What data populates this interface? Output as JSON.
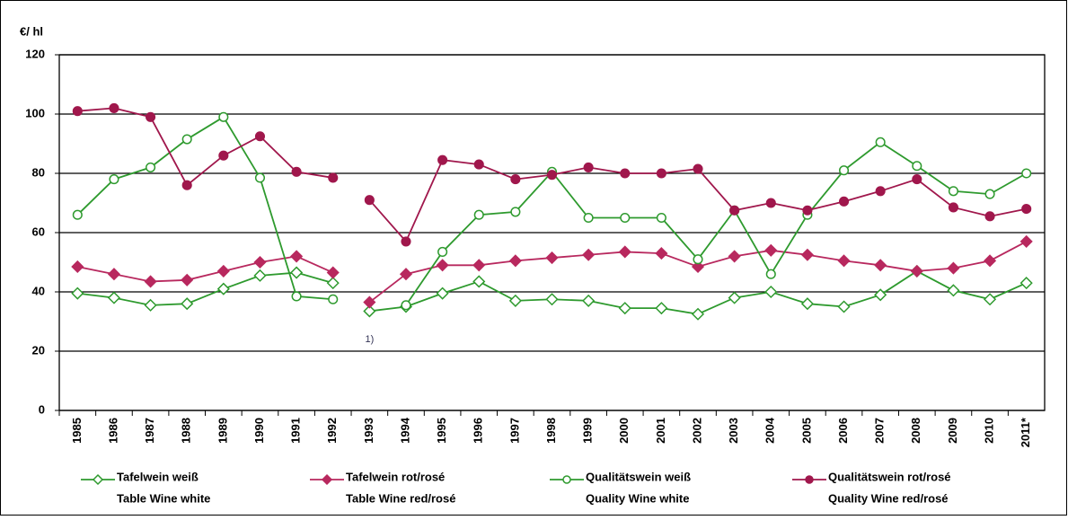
{
  "chart_data": {
    "type": "line",
    "y_label": "€/ hl",
    "annotation": "1)",
    "annotation_category": "1993",
    "line_break_before": "1993",
    "categories": [
      "1985",
      "1986",
      "1987",
      "1988",
      "1989",
      "1990",
      "1991",
      "1992",
      "1993",
      "1994",
      "1995",
      "1996",
      "1997",
      "1998",
      "1999",
      "2000",
      "2001",
      "2002",
      "2003",
      "2004",
      "2005",
      "2006",
      "2007",
      "2008",
      "2009",
      "2010",
      "2011*"
    ],
    "ylim": [
      0,
      120
    ],
    "yticks": [
      0,
      20,
      40,
      60,
      80,
      100,
      120
    ],
    "grid": true,
    "series": [
      {
        "name": "Tafelwein weiß",
        "name_en": "Table Wine white",
        "color": "#2e9a2e",
        "marker": "diamond",
        "filled": false,
        "values": [
          39.5,
          38,
          35.5,
          36,
          41,
          45.5,
          46.5,
          43,
          33.5,
          35,
          39.5,
          43.5,
          37,
          37.5,
          37,
          34.5,
          34.5,
          32.5,
          38,
          40,
          36,
          35,
          39,
          47,
          40.5,
          37.5,
          43
        ]
      },
      {
        "name": "Tafelwein rot/rosé",
        "name_en": "Table Wine red/rosé",
        "color": "#b8285e",
        "marker": "diamond",
        "filled": true,
        "values": [
          48.5,
          46,
          43.5,
          44,
          47,
          50,
          52,
          46.5,
          36.5,
          46,
          49,
          49,
          50.5,
          51.5,
          52.5,
          53.5,
          53,
          48.5,
          52,
          54,
          52.5,
          50.5,
          49,
          47,
          48,
          50.5,
          57
        ]
      },
      {
        "name": "Qualitätswein weiß",
        "name_en": "Quality Wine white",
        "color": "#2e9a2e",
        "marker": "circle",
        "filled": false,
        "values": [
          66,
          78,
          82,
          91.5,
          99,
          78.5,
          38.5,
          37.5,
          null,
          35.5,
          53.5,
          66,
          67,
          80.5,
          65,
          65,
          65,
          51,
          67.5,
          46,
          66,
          81,
          90.5,
          82.5,
          74,
          73,
          80
        ]
      },
      {
        "name": "Qualitätswein rot/rosé",
        "name_en": "Quality Wine red/rosé",
        "color": "#a0174c",
        "marker": "circle",
        "filled": true,
        "values": [
          101,
          102,
          99,
          76,
          86,
          92.5,
          80.5,
          78.5,
          71,
          57,
          84.5,
          83,
          78,
          79.5,
          82,
          80,
          80,
          81.5,
          67.5,
          70,
          67.5,
          70.5,
          74,
          78,
          68.5,
          65.5,
          68
        ]
      }
    ]
  }
}
